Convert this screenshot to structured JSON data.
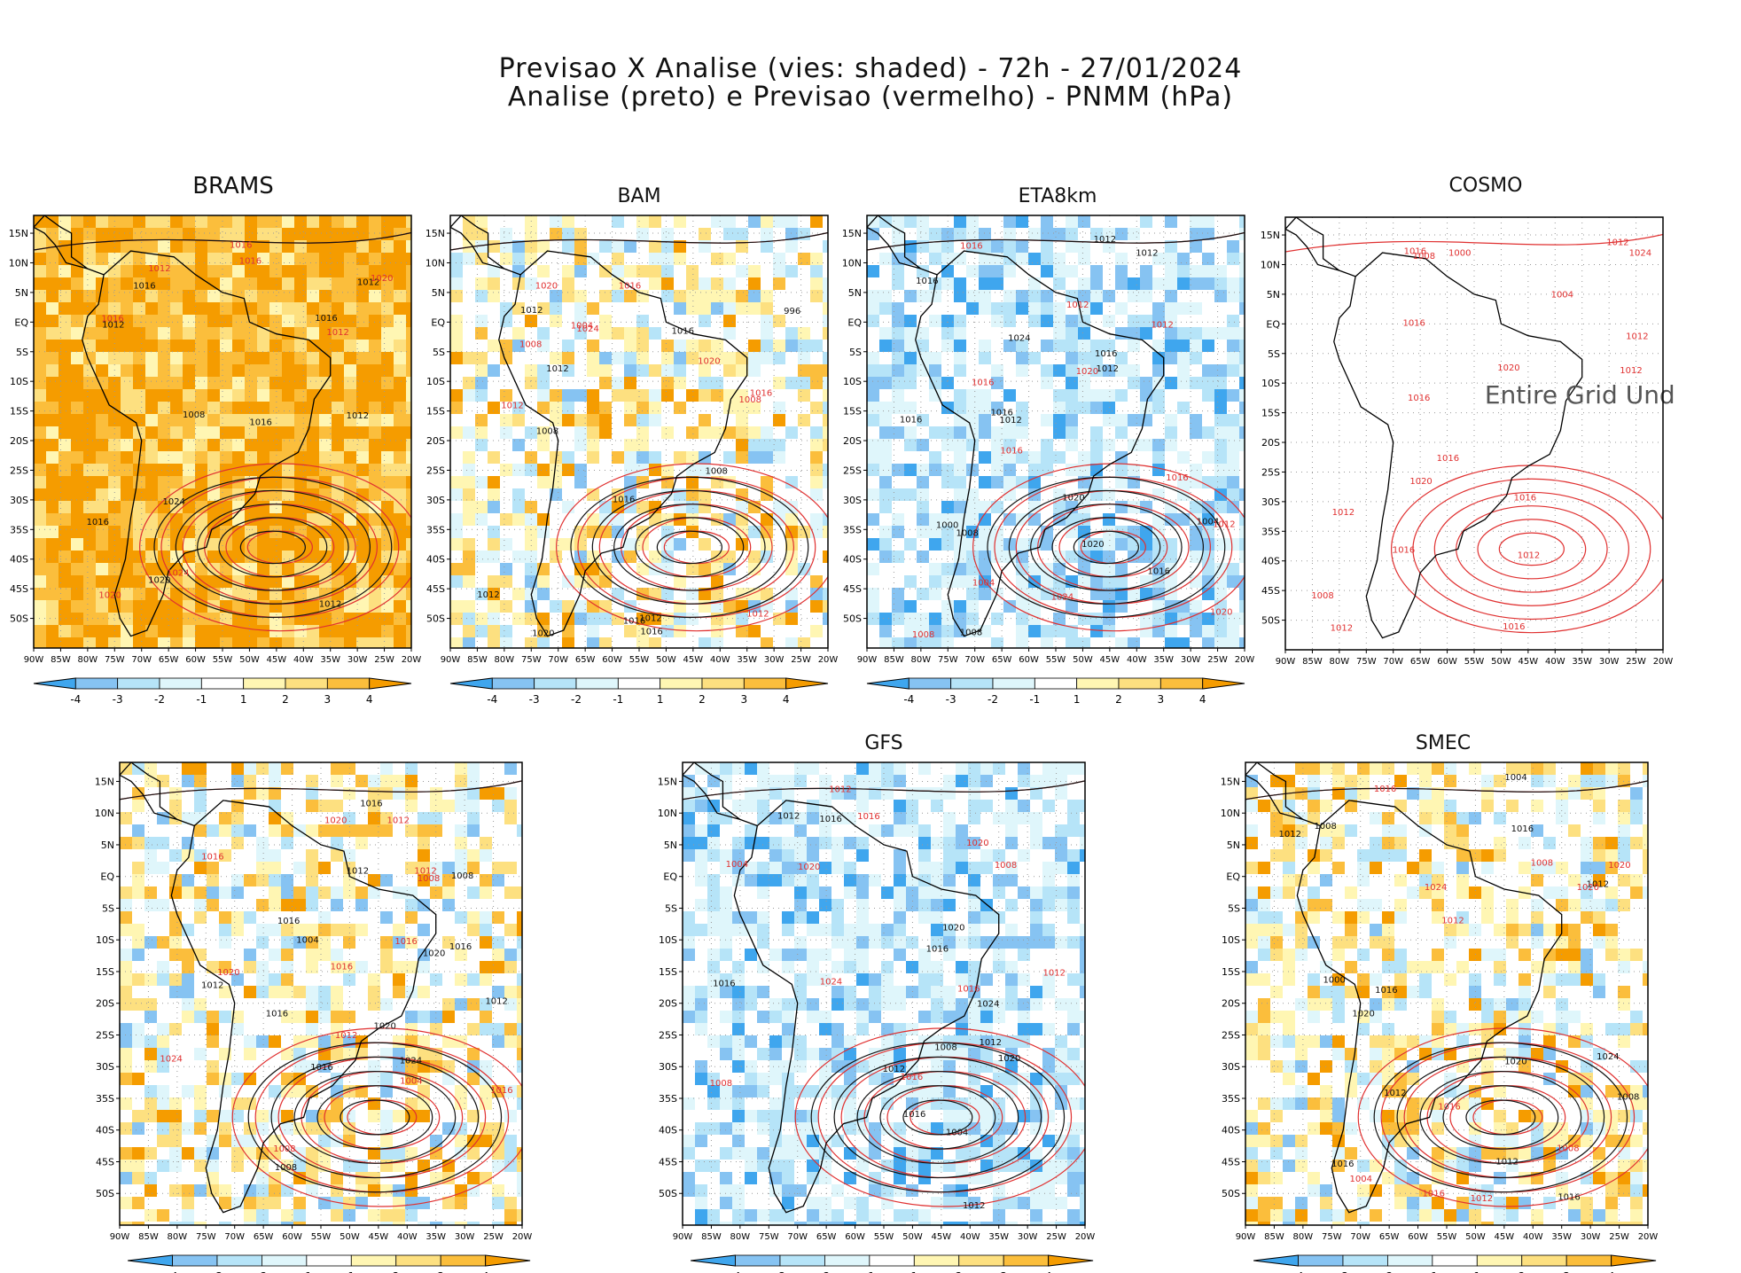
{
  "header": {
    "title_line1": "Previsao X Analise (vies: shaded) - 72h - 27/01/2024",
    "title_line2": "Analise (preto) e Previsao (vermelho) - PNMM (hPa)"
  },
  "colors": {
    "neg4": "#3fa6ee",
    "neg3": "#86c3f2",
    "neg2": "#b6e4f8",
    "neg1": "#dff6fb",
    "zero": "#ffffff",
    "pos1": "#fff6b3",
    "pos2": "#fde080",
    "pos3": "#fbbe3c",
    "pos4": "#f59c00",
    "analysis": "#111111",
    "forecast": "#e03030",
    "coast": "#000000"
  },
  "chart_data": {
    "type": "map_panels",
    "variable": "PNMM (hPa)",
    "lead_time": "72h",
    "date": "27/01/2024",
    "shading": "bias forecast minus analysis",
    "lat_ticks": [
      "15N",
      "10N",
      "5N",
      "EQ",
      "5S",
      "10S",
      "15S",
      "20S",
      "25S",
      "30S",
      "35S",
      "40S",
      "45S",
      "50S"
    ],
    "lon_ticks": [
      "90W",
      "85W",
      "80W",
      "75W",
      "70W",
      "65W",
      "60W",
      "55W",
      "50W",
      "45W",
      "40W",
      "35W",
      "30W",
      "25W",
      "20W"
    ],
    "colorbar_labels": [
      "-4",
      "-3",
      "-2",
      "-1",
      "1",
      "2",
      "3",
      "4"
    ],
    "panels": [
      {
        "model": "BRAMS",
        "bias": "positive",
        "labels_black": [
          "1016",
          "1012",
          "1008",
          "1012",
          "1016",
          "1012",
          "1016",
          "1020",
          "1024",
          "1012",
          "1016"
        ],
        "labels_red": [
          "1012",
          "1016",
          "1020",
          "1024",
          "1016",
          "1020",
          "1012",
          "1016"
        ]
      },
      {
        "model": "BAM",
        "bias": "mixed",
        "labels_black": [
          "1016",
          "1016",
          "1012",
          "1012",
          "1008",
          "1012",
          "1016",
          "1020",
          "1016",
          "1012",
          "1008",
          "996"
        ],
        "labels_red": [
          "1016",
          "1012",
          "1008",
          "1016",
          "1020",
          "1024",
          "1020",
          "1012",
          "1008",
          "1004"
        ]
      },
      {
        "model": "ETA8km",
        "bias": "negative",
        "labels_black": [
          "1016",
          "1016",
          "1012",
          "1008",
          "1012",
          "1016",
          "1012",
          "1016",
          "1020",
          "1024",
          "1020",
          "1016",
          "1012",
          "1008",
          "1004",
          "1000"
        ],
        "labels_red": [
          "1016",
          "1012",
          "1016",
          "1008",
          "1012",
          "1016",
          "1020",
          "1024",
          "1020",
          "1016",
          "1012",
          "1004"
        ]
      },
      {
        "model": "COSMO",
        "bias": "none",
        "note": "Entire Grid Und",
        "labels_black": [],
        "labels_red": [
          "1012",
          "1016",
          "1016",
          "1012",
          "1012",
          "1016",
          "1012",
          "1012",
          "1016",
          "1020",
          "1024",
          "1016",
          "1012",
          "1008",
          "1004",
          "1000",
          "1020",
          "1016",
          "1008",
          "1016"
        ]
      },
      {
        "model": "",
        "bias": "mixed",
        "labels_black": [
          "1016",
          "1012",
          "1008",
          "1016",
          "1012",
          "1016",
          "1020",
          "1016",
          "1024",
          "1020",
          "1016",
          "1012",
          "1008",
          "1004"
        ],
        "labels_red": [
          "1012",
          "1016",
          "1008",
          "1012",
          "1016",
          "1020",
          "1016",
          "1024",
          "1020",
          "1016",
          "1012",
          "1008",
          "1004"
        ]
      },
      {
        "model": "GFS",
        "bias": "negative",
        "labels_black": [
          "1016",
          "1012",
          "1012",
          "1016",
          "1012",
          "1016",
          "1020",
          "1024",
          "1020",
          "1016",
          "1012",
          "1008",
          "1004"
        ],
        "labels_red": [
          "1016",
          "1012",
          "1008",
          "1016",
          "1020",
          "1024",
          "1020",
          "1016",
          "1012",
          "1008",
          "1004"
        ]
      },
      {
        "model": "SMEC",
        "bias": "mixed",
        "labels_black": [
          "1012",
          "1016",
          "1008",
          "1012",
          "1016",
          "1012",
          "1016",
          "1020",
          "1024",
          "1020",
          "1016",
          "1012",
          "1008",
          "1004",
          "1000"
        ],
        "labels_red": [
          "1016",
          "1012",
          "1008",
          "1016",
          "1020",
          "1024",
          "1020",
          "1016",
          "1012",
          "1008",
          "1004"
        ]
      }
    ]
  }
}
